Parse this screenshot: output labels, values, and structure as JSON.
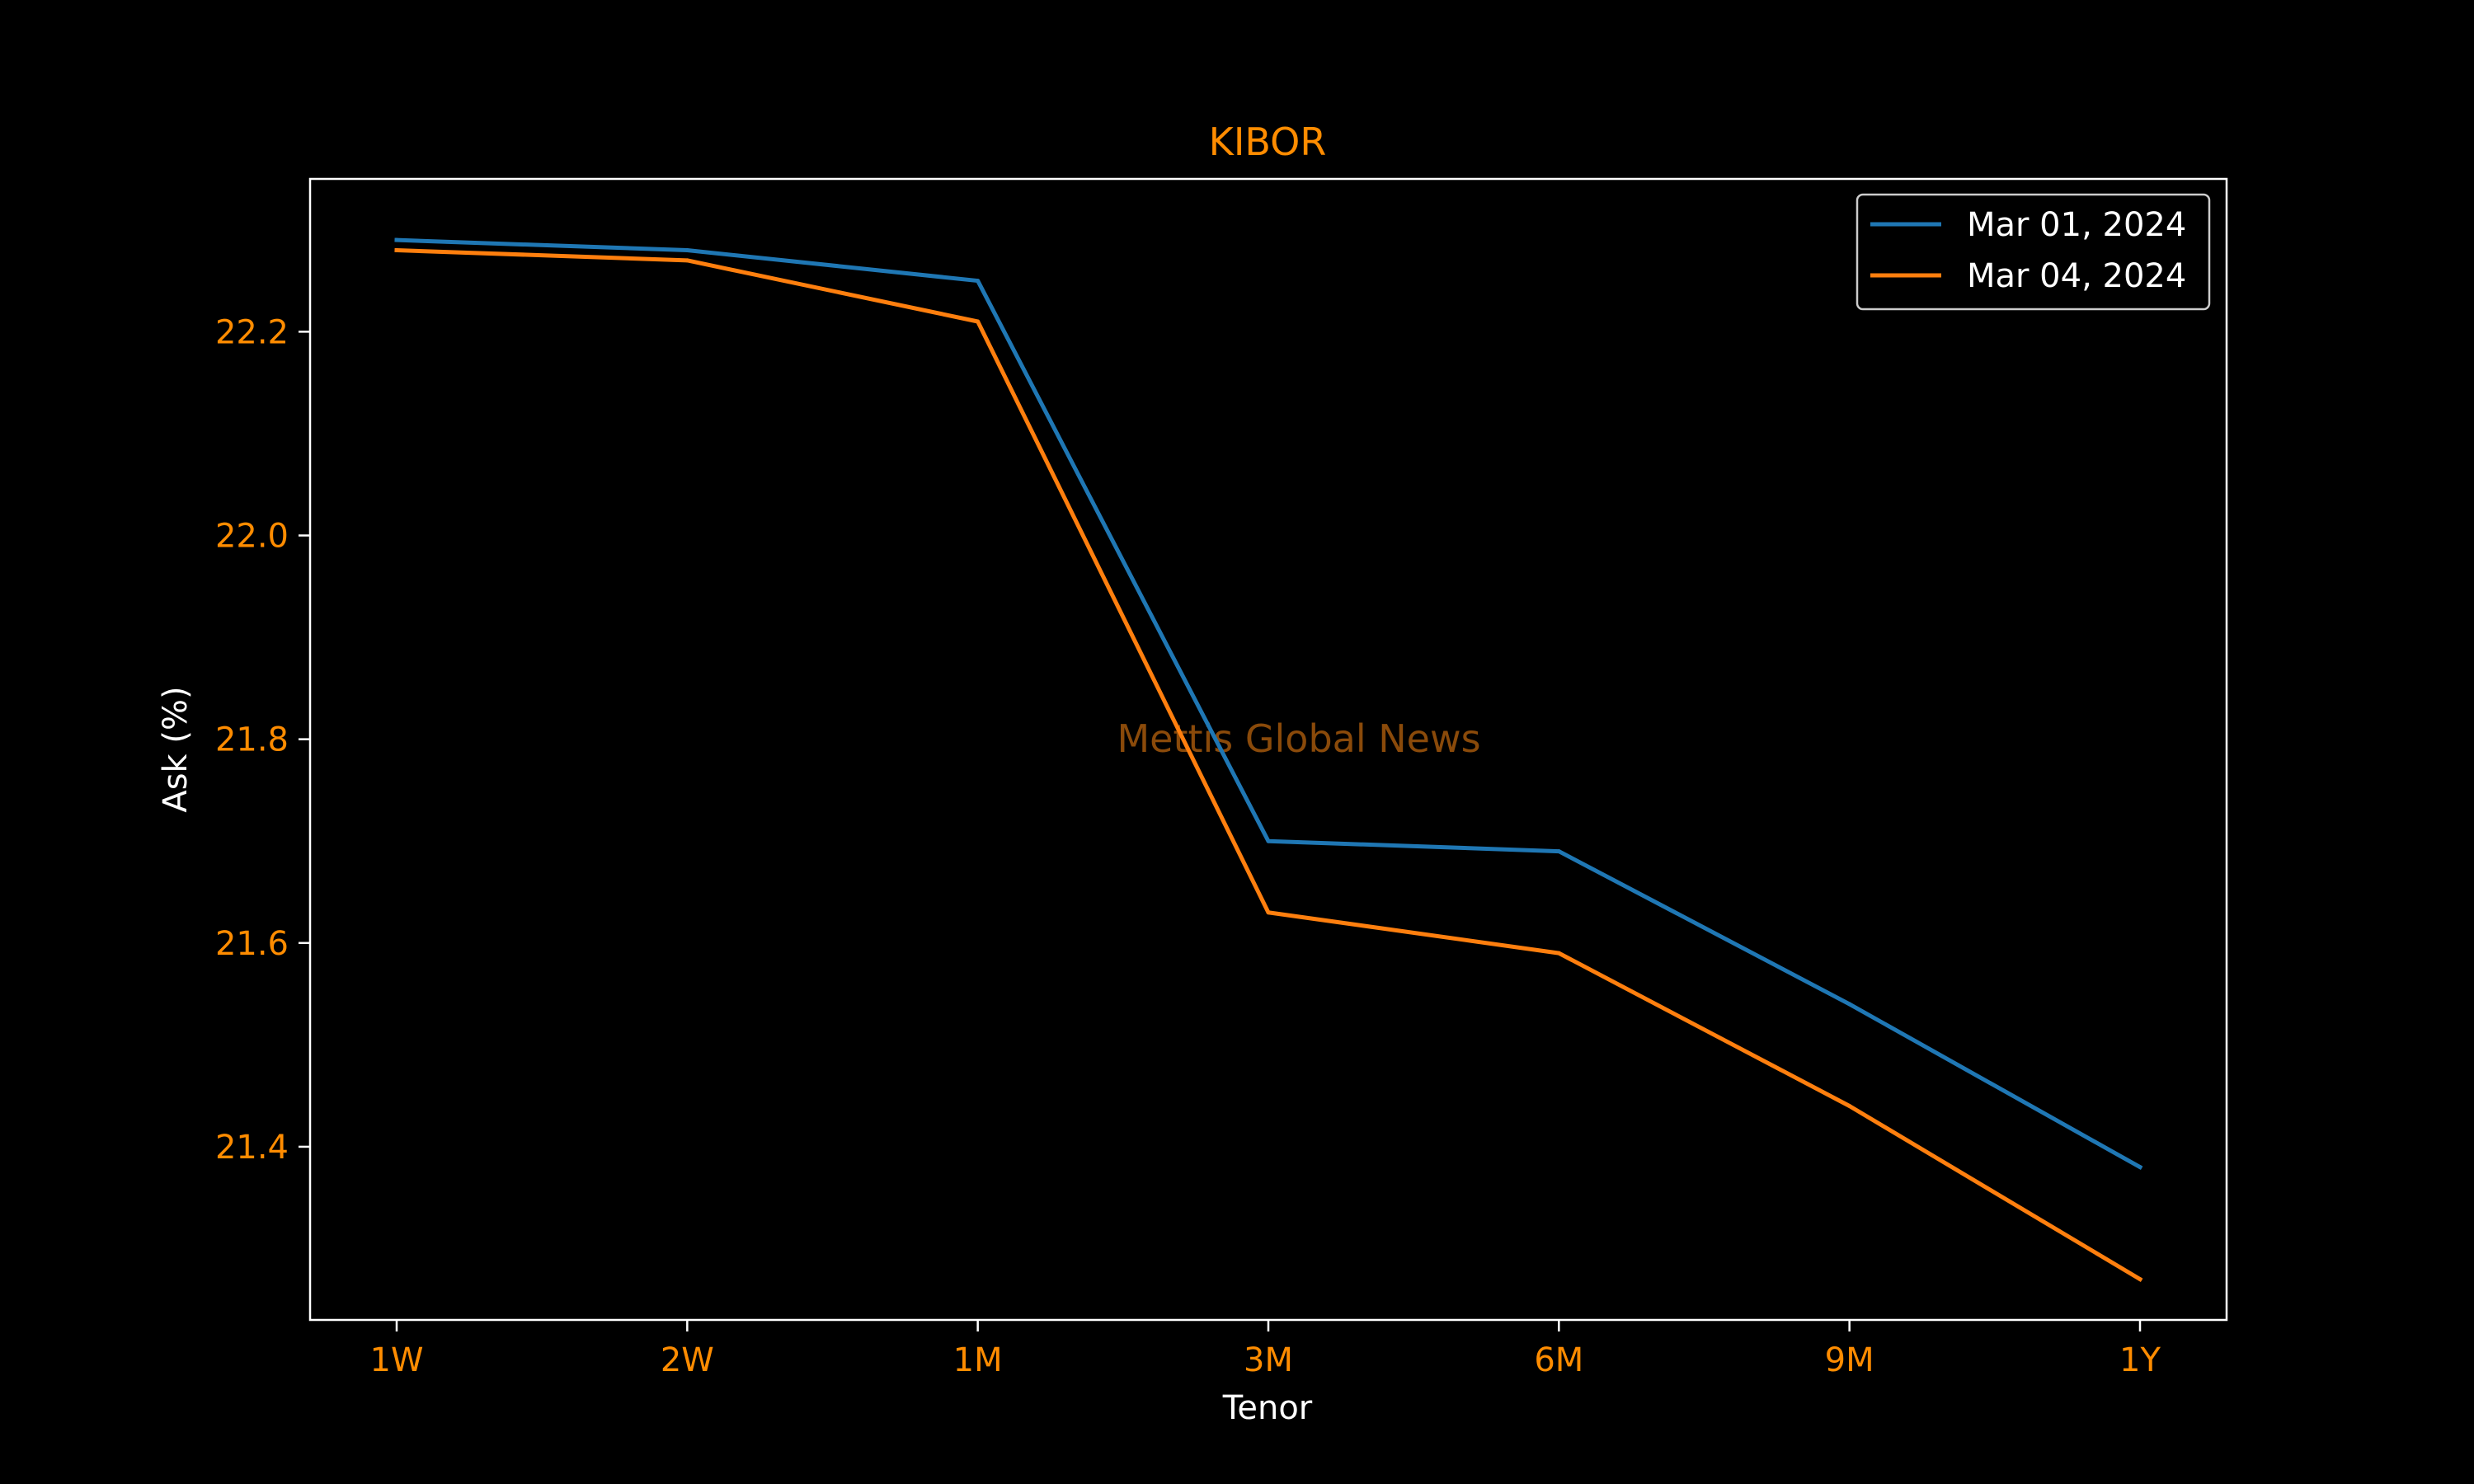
{
  "colors": {
    "background": "#000000",
    "accent": "#ff8c00",
    "text": "#ffffff",
    "watermark": "#8a4a0a",
    "axes": "#ffffff"
  },
  "watermark": "Mettis Global News",
  "chart_data": {
    "type": "line",
    "title": "KIBOR",
    "xlabel": "Tenor",
    "ylabel": "Ask (%)",
    "categories": [
      "1W",
      "2W",
      "1M",
      "3M",
      "6M",
      "9M",
      "1Y"
    ],
    "ylim": [
      21.23,
      22.35
    ],
    "yticks": [
      21.4,
      21.6,
      21.8,
      22.0,
      22.2
    ],
    "ytick_labels": [
      "21.4",
      "21.6",
      "21.8",
      "22.0",
      "22.2"
    ],
    "grid": false,
    "legend": "top-right",
    "series": [
      {
        "name": "Mar 01, 2024",
        "color": "#1f77b4",
        "values": [
          22.29,
          22.28,
          22.25,
          21.7,
          21.69,
          21.54,
          21.38
        ]
      },
      {
        "name": "Mar 04, 2024",
        "color": "#ff7f0e",
        "values": [
          22.28,
          22.27,
          22.21,
          21.63,
          21.59,
          21.44,
          21.27
        ]
      }
    ]
  }
}
